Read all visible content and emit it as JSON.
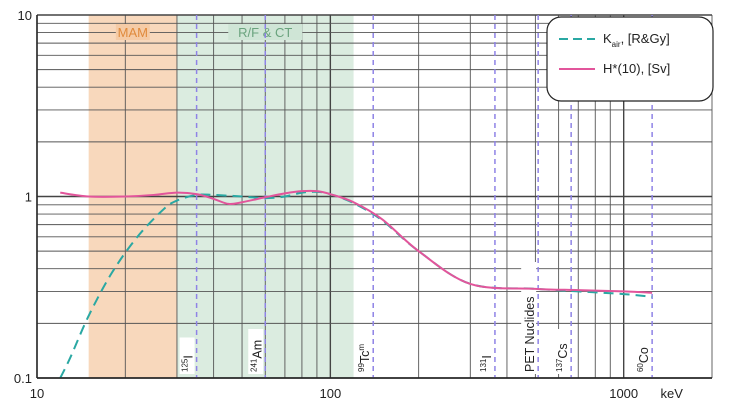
{
  "chart_data": {
    "type": "line",
    "x_scale": "log",
    "y_scale": "log",
    "xlim": [
      10,
      2000
    ],
    "ylim": [
      0.1,
      10
    ],
    "x_unit": "keV",
    "x_ticks": [
      {
        "value": 10,
        "label": "10"
      },
      {
        "value": 100,
        "label": "100"
      },
      {
        "value": 1000,
        "label": "1000"
      }
    ],
    "y_ticks": [
      {
        "value": 10,
        "label": "10"
      },
      {
        "value": 1,
        "label": "1"
      },
      {
        "value": 0.1,
        "label": "0.1"
      }
    ],
    "grid": true,
    "legend_position": "top-right",
    "bands": [
      {
        "label": "MAM",
        "x_range": [
          15,
          30
        ],
        "color": "#f5cba6",
        "text_color": "#e08a3c"
      },
      {
        "label": "R/F & CT",
        "x_range": [
          30,
          120
        ],
        "color": "#cfe5d6",
        "text_color": "#6aa37e"
      }
    ],
    "nuclides": [
      {
        "label": "125I",
        "mass": "125",
        "symbol": "I",
        "energy": 35
      },
      {
        "label": "241Am",
        "mass": "241",
        "symbol": "Am",
        "energy": 60
      },
      {
        "label": "99Tcm",
        "mass": "99",
        "symbol": "Tc",
        "sup": "m",
        "energy": 140
      },
      {
        "label": "131I",
        "mass": "131",
        "symbol": "I",
        "energy": 364
      },
      {
        "label": "PET Nuclides",
        "mass": "",
        "symbol": "PET Nuclides",
        "energy": 511
      },
      {
        "label": "137Cs",
        "mass": "137",
        "symbol": "Cs",
        "energy": 662
      },
      {
        "label": "60Co",
        "mass": "60",
        "symbol": "Co",
        "energy": 1250
      }
    ],
    "series": [
      {
        "name": "K_air, [R&Gy]",
        "legend_main": "K",
        "legend_sub": "air",
        "legend_rest": ", [R&Gy]",
        "color": "#2aa8a3",
        "dash": "dashed",
        "x": [
          12,
          13,
          15,
          18,
          22,
          27,
          30,
          35,
          40,
          50,
          60,
          70,
          80,
          90,
          100,
          120,
          150,
          200,
          300,
          500,
          700,
          1000,
          1250
        ],
        "y": [
          0.1,
          0.13,
          0.22,
          0.38,
          0.6,
          0.85,
          0.95,
          1.02,
          1.02,
          1.0,
          0.98,
          1.0,
          1.05,
          1.06,
          1.03,
          0.92,
          0.74,
          0.5,
          0.33,
          0.31,
          0.3,
          0.29,
          0.28
        ]
      },
      {
        "name": "H*(10), [Sv]",
        "legend_main": "H*(10), [Sv]",
        "legend_sub": "",
        "legend_rest": "",
        "color": "#e2559b",
        "dash": "solid",
        "x": [
          12,
          15,
          20,
          25,
          30,
          35,
          40,
          45,
          50,
          60,
          70,
          80,
          90,
          100,
          120,
          150,
          200,
          300,
          500,
          700,
          1000,
          1250
        ],
        "y": [
          1.05,
          1.0,
          1.0,
          1.02,
          1.05,
          1.03,
          0.97,
          0.91,
          0.93,
          0.99,
          1.04,
          1.07,
          1.07,
          1.03,
          0.93,
          0.75,
          0.5,
          0.33,
          0.31,
          0.305,
          0.3,
          0.295
        ]
      }
    ]
  }
}
